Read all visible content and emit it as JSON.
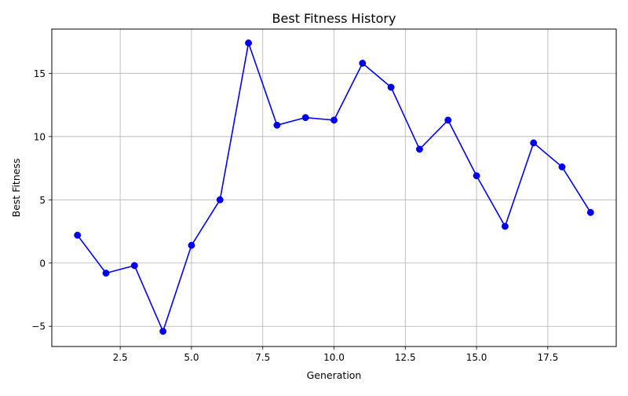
{
  "chart_data": {
    "type": "line",
    "title": "Best Fitness History",
    "xlabel": "Generation",
    "ylabel": "Best Fitness",
    "xlim": [
      0.1,
      19.9
    ],
    "ylim": [
      -6.6,
      18.5
    ],
    "xticks": [
      2.5,
      5.0,
      7.5,
      10.0,
      12.5,
      15.0,
      17.5
    ],
    "xtick_labels": [
      "2.5",
      "5.0",
      "7.5",
      "10.0",
      "12.5",
      "15.0",
      "17.5"
    ],
    "yticks": [
      -5,
      0,
      5,
      10,
      15
    ],
    "ytick_labels": [
      "−5",
      "0",
      "5",
      "10",
      "15"
    ],
    "grid": true,
    "legend": "none",
    "series": [
      {
        "color": "#0000ee",
        "marker": "circle",
        "x": [
          1,
          2,
          3,
          4,
          5,
          6,
          7,
          8,
          9,
          10,
          11,
          12,
          13,
          14,
          15,
          16,
          17,
          18,
          19
        ],
        "y": [
          2.2,
          -0.8,
          -0.2,
          -5.4,
          1.4,
          5.0,
          17.4,
          10.9,
          11.5,
          11.3,
          15.8,
          13.9,
          9.0,
          11.3,
          6.9,
          2.9,
          9.5,
          7.6,
          4.0
        ]
      }
    ]
  }
}
